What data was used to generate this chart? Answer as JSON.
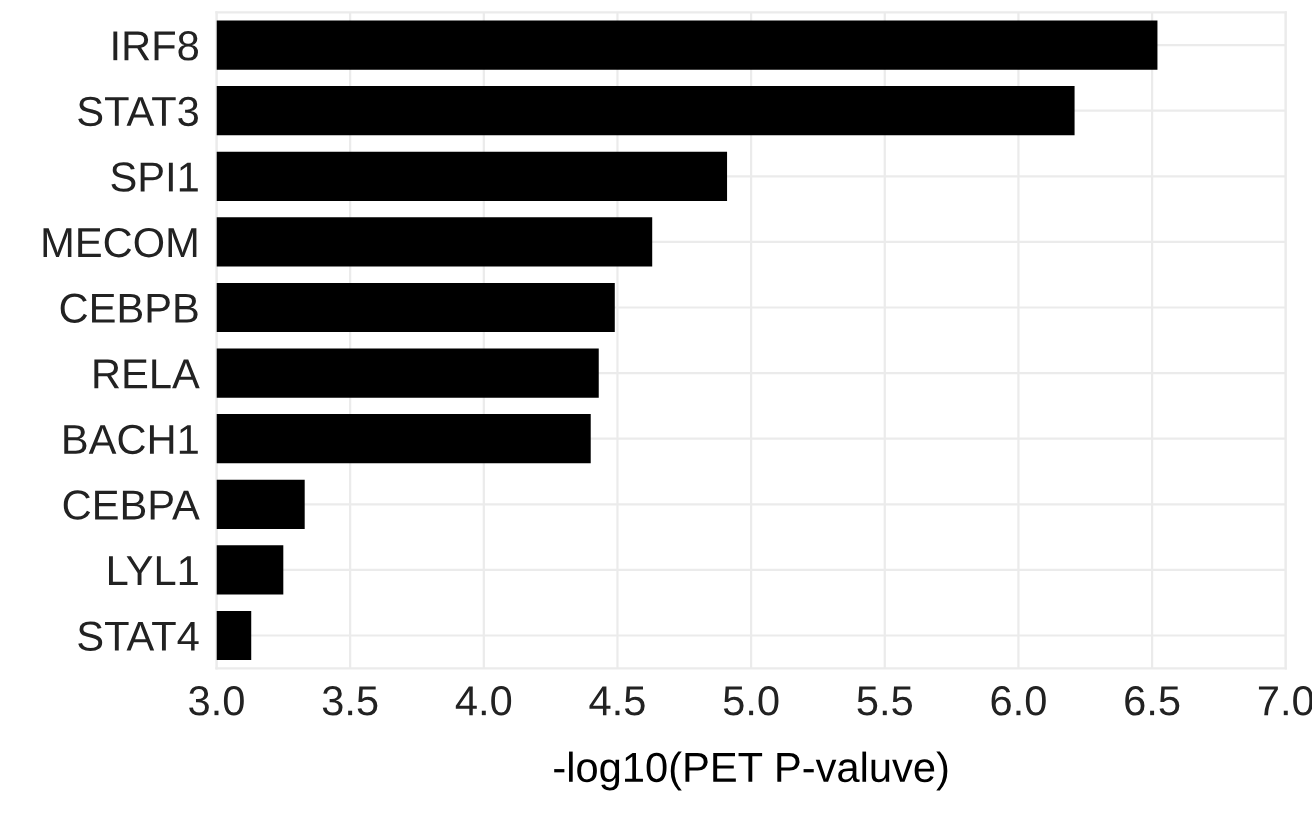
{
  "chart_data": {
    "type": "bar",
    "orientation": "horizontal",
    "xlabel": "-log10(PET P-valuve)",
    "categories": [
      "IRF8",
      "STAT3",
      "SPI1",
      "MECOM",
      "CEBPB",
      "RELA",
      "BACH1",
      "CEBPA",
      "LYL1",
      "STAT4"
    ],
    "values": [
      6.52,
      6.21,
      4.91,
      4.63,
      4.49,
      4.43,
      4.4,
      3.33,
      3.25,
      3.13
    ],
    "color": "#000000",
    "xlim": [
      3.0,
      7.0
    ],
    "xticks": [
      {
        "value": 3.0,
        "label": "3.0"
      },
      3.5,
      {
        "value": 4.0,
        "label": "4.0"
      },
      4.5,
      {
        "value": 5.0,
        "label": "5.0"
      },
      5.5,
      {
        "value": 6.0,
        "label": "6.0"
      },
      6.5,
      {
        "value": 7.0,
        "label": "7.0"
      }
    ],
    "grid": true
  }
}
